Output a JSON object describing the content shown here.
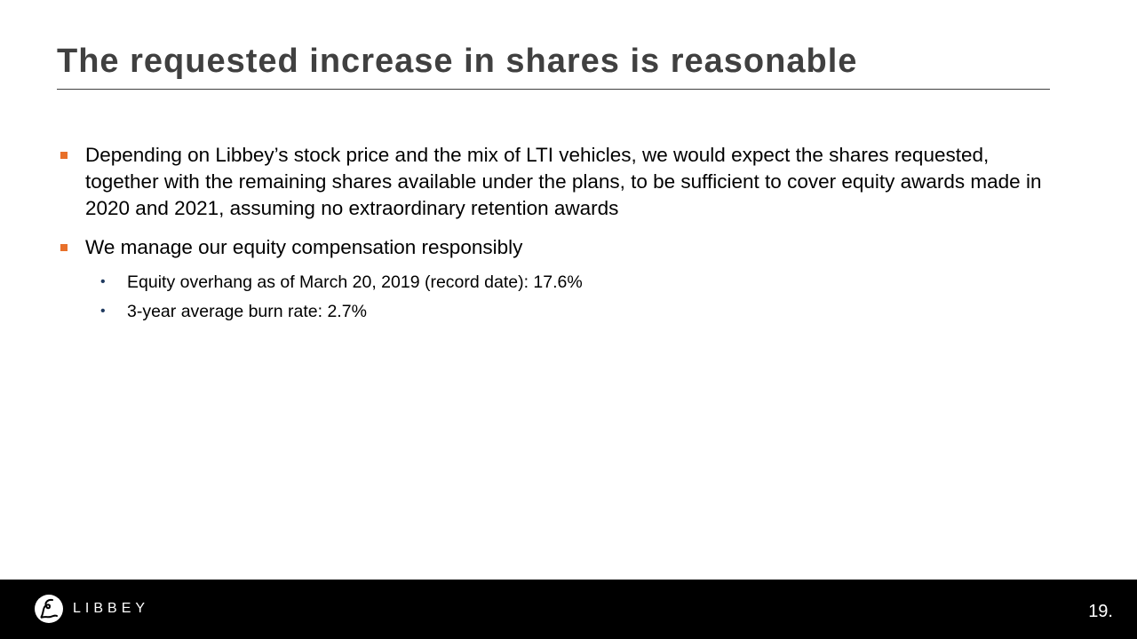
{
  "slide": {
    "title": "The requested increase in shares is reasonable",
    "bullets": [
      {
        "text": "Depending on Libbey’s stock price and the mix of LTI vehicles, we would expect the shares requested, together with the remaining shares available under the plans, to be sufficient to cover equity awards made in 2020 and 2021, assuming no extraordinary retention awards"
      },
      {
        "text": "We manage our equity compensation responsibly",
        "sub_bullets": [
          "Equity overhang as of March 20, 2019 (record date): 17.6%",
          "3-year average burn rate: 2.7%"
        ]
      }
    ]
  },
  "footer": {
    "logo_text": "LIBBEY",
    "page_number": "19."
  },
  "colors": {
    "title": "#404040",
    "bullet_marker": "#e8702a",
    "sub_bullet_marker": "#1f3a5f",
    "footer_background": "#000000"
  },
  "icons": {
    "logo": "libbey-script-l-icon"
  }
}
